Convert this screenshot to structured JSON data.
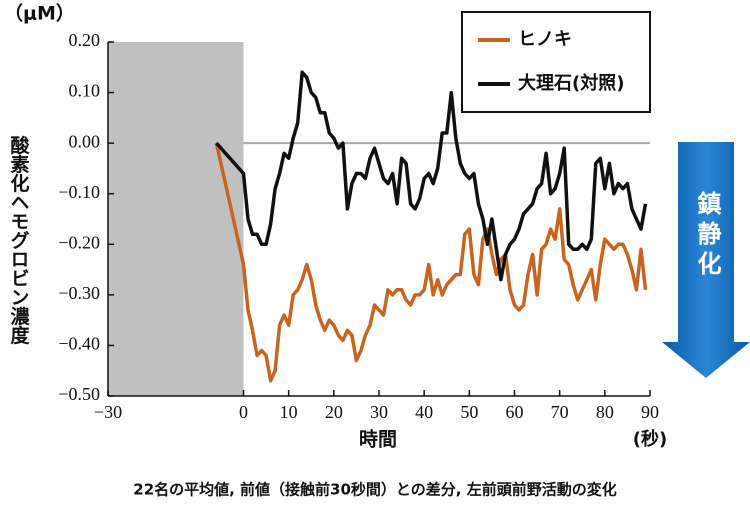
{
  "chart_data": {
    "type": "line",
    "y_unit": "（μM）",
    "ylabel": "酸素化ヘモグロビン濃度",
    "xlabel": "時間",
    "x_unit": "(秒)",
    "caption": "22名の平均値, 前値（接触前30秒間）との差分, 左前頭前野活動の変化",
    "annotation": "鎮静化",
    "shaded_span": [
      -30,
      0
    ],
    "reference_line": 0,
    "xlim": [
      -30,
      90
    ],
    "xticks": [
      {
        "value": -30,
        "label": "−30"
      },
      0,
      10,
      20,
      30,
      40,
      50,
      60,
      70,
      80,
      90
    ],
    "ylim": [
      -0.5,
      0.2
    ],
    "yticks": [
      {
        "value": 0.2,
        "label": "0.20"
      },
      {
        "value": 0.1,
        "label": "0.10"
      },
      {
        "value": 0,
        "label": "0.00"
      },
      {
        "value": -0.1,
        "label": "−0.10"
      },
      {
        "value": -0.2,
        "label": "−0.20"
      },
      {
        "value": -0.3,
        "label": "−0.30"
      },
      {
        "value": -0.4,
        "label": "−0.40"
      },
      {
        "value": -0.5,
        "label": "−0.50"
      }
    ],
    "x": [
      -6,
      0,
      1,
      2,
      3,
      4,
      5,
      6,
      7,
      8,
      9,
      10,
      11,
      12,
      13,
      14,
      15,
      16,
      17,
      18,
      19,
      20,
      21,
      22,
      23,
      24,
      25,
      26,
      27,
      28,
      29,
      30,
      31,
      32,
      33,
      34,
      35,
      36,
      37,
      38,
      39,
      40,
      41,
      42,
      43,
      44,
      45,
      46,
      47,
      48,
      49,
      50,
      51,
      52,
      53,
      54,
      55,
      56,
      57,
      58,
      59,
      60,
      61,
      62,
      63,
      64,
      65,
      66,
      67,
      68,
      69,
      70,
      71,
      72,
      73,
      74,
      75,
      76,
      77,
      78,
      79,
      80,
      81,
      82,
      83,
      84,
      85,
      86,
      87,
      88,
      89
    ],
    "series": [
      {
        "name": "ヒノキ",
        "color": "#c8641e",
        "values": [
          0,
          -0.24,
          -0.33,
          -0.37,
          -0.42,
          -0.41,
          -0.42,
          -0.47,
          -0.45,
          -0.36,
          -0.34,
          -0.36,
          -0.3,
          -0.29,
          -0.27,
          -0.24,
          -0.27,
          -0.32,
          -0.35,
          -0.37,
          -0.35,
          -0.36,
          -0.38,
          -0.39,
          -0.37,
          -0.38,
          -0.43,
          -0.41,
          -0.38,
          -0.36,
          -0.32,
          -0.33,
          -0.34,
          -0.29,
          -0.3,
          -0.29,
          -0.29,
          -0.31,
          -0.32,
          -0.3,
          -0.3,
          -0.29,
          -0.24,
          -0.3,
          -0.27,
          -0.3,
          -0.28,
          -0.27,
          -0.26,
          -0.26,
          -0.18,
          -0.17,
          -0.26,
          -0.28,
          -0.19,
          -0.17,
          -0.22,
          -0.26,
          -0.23,
          -0.22,
          -0.29,
          -0.32,
          -0.33,
          -0.32,
          -0.26,
          -0.22,
          -0.3,
          -0.21,
          -0.2,
          -0.17,
          -0.19,
          -0.13,
          -0.23,
          -0.24,
          -0.28,
          -0.31,
          -0.29,
          -0.27,
          -0.25,
          -0.31,
          -0.24,
          -0.19,
          -0.2,
          -0.21,
          -0.2,
          -0.2,
          -0.22,
          -0.25,
          -0.29,
          -0.21,
          -0.29
        ]
      },
      {
        "name": "大理石(対照)",
        "color": "#111111",
        "values": [
          0,
          -0.06,
          -0.15,
          -0.18,
          -0.18,
          -0.2,
          -0.2,
          -0.16,
          -0.09,
          -0.06,
          -0.02,
          -0.03,
          0.01,
          0.04,
          0.14,
          0.13,
          0.1,
          0.09,
          0.06,
          0.06,
          0.02,
          0.01,
          -0.01,
          0.0,
          -0.13,
          -0.08,
          -0.06,
          -0.06,
          -0.07,
          -0.03,
          -0.01,
          -0.04,
          -0.07,
          -0.08,
          -0.06,
          -0.12,
          -0.03,
          -0.04,
          -0.12,
          -0.13,
          -0.11,
          -0.07,
          -0.06,
          -0.08,
          -0.05,
          0.02,
          0.02,
          0.1,
          0.01,
          -0.04,
          -0.06,
          -0.07,
          -0.06,
          -0.12,
          -0.15,
          -0.2,
          -0.15,
          -0.21,
          -0.27,
          -0.22,
          -0.2,
          -0.19,
          -0.17,
          -0.14,
          -0.13,
          -0.12,
          -0.09,
          -0.08,
          -0.02,
          -0.1,
          -0.09,
          -0.06,
          -0.01,
          -0.2,
          -0.21,
          -0.21,
          -0.2,
          -0.21,
          -0.19,
          -0.04,
          -0.03,
          -0.09,
          -0.04,
          -0.1,
          -0.08,
          -0.09,
          -0.08,
          -0.13,
          -0.15,
          -0.17,
          -0.12
        ]
      }
    ]
  }
}
